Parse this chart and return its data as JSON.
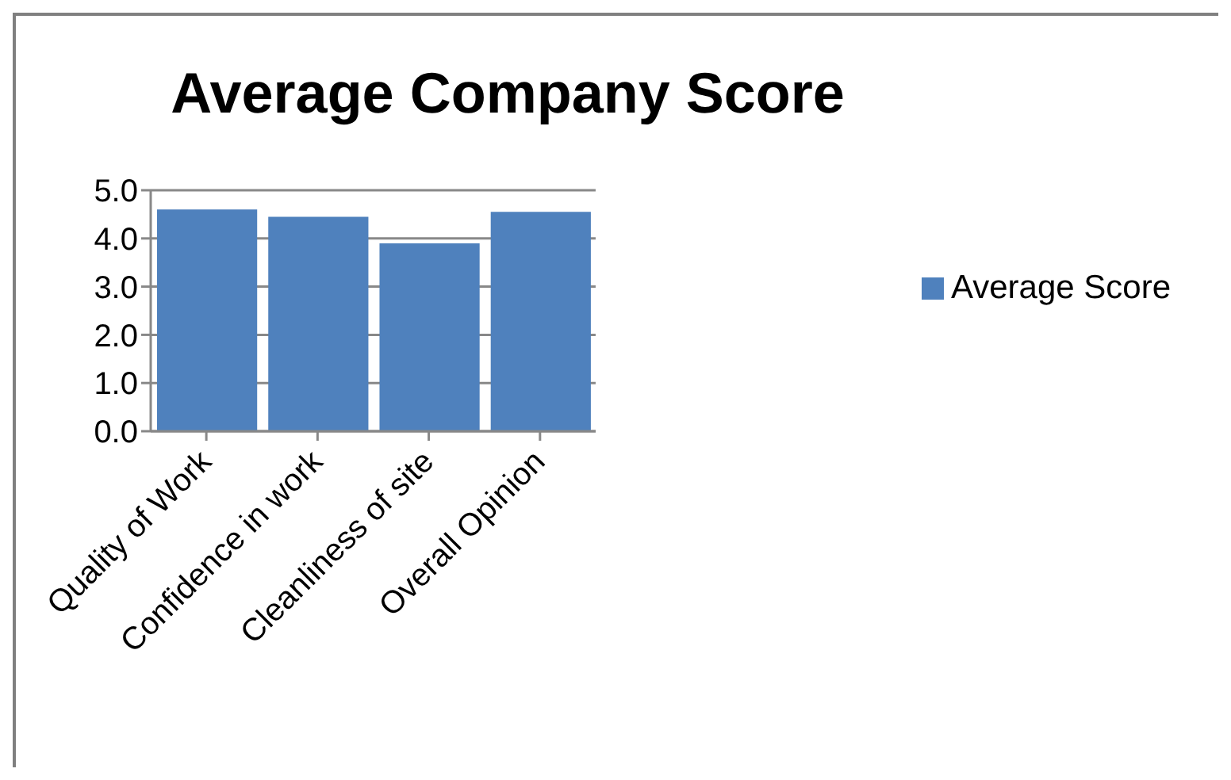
{
  "chart_data": {
    "type": "bar",
    "title": "Average Company Score",
    "categories": [
      "Quality of Work",
      "Confidence in work",
      "Cleanliness of site",
      "Overall Opinion"
    ],
    "series": [
      {
        "name": "Average Score",
        "color": "#4f81bd",
        "values": [
          4.6,
          4.45,
          3.9,
          4.55
        ]
      }
    ],
    "ylim": [
      0,
      5
    ],
    "yticks": [
      {
        "value": 0,
        "label": "0.0"
      },
      {
        "value": 1,
        "label": "1.0"
      },
      {
        "value": 2,
        "label": "2.0"
      },
      {
        "value": 3,
        "label": "3.0"
      },
      {
        "value": 4,
        "label": "4.0"
      },
      {
        "value": 5,
        "label": "5.0"
      }
    ],
    "grid": "y",
    "legend": "right"
  }
}
